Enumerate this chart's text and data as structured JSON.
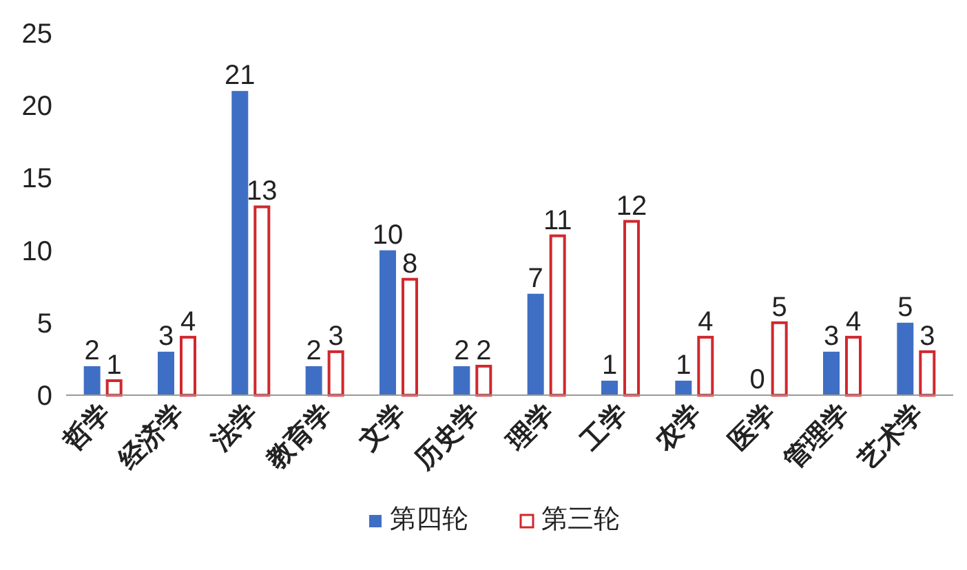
{
  "chart_data": {
    "type": "bar",
    "categories": [
      "哲学",
      "经济学",
      "法学",
      "教育学",
      "文学",
      "历史学",
      "理学",
      "工学",
      "农学",
      "医学",
      "管理学",
      "艺术学"
    ],
    "series": [
      {
        "name": "第四轮",
        "color": "#3f6fc4",
        "values": [
          2,
          3,
          21,
          2,
          10,
          2,
          7,
          1,
          1,
          0,
          3,
          5
        ]
      },
      {
        "name": "第三轮",
        "color": "#d0282e",
        "values": [
          1,
          4,
          13,
          3,
          8,
          2,
          11,
          12,
          4,
          5,
          4,
          3
        ]
      }
    ],
    "ylim": [
      0,
      25
    ],
    "yticks": [
      0,
      5,
      10,
      15,
      20,
      25
    ],
    "data_labels": true,
    "legend": "bottom"
  }
}
